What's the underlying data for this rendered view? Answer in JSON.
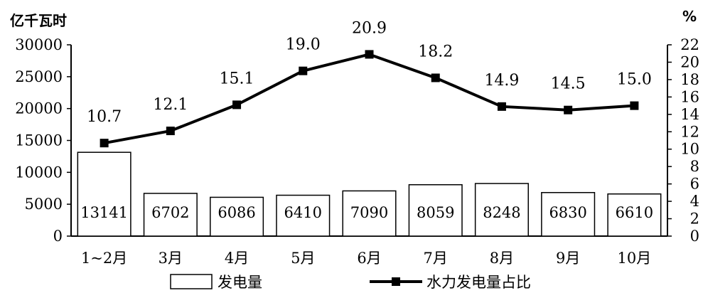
{
  "chart_data": {
    "type": "bar",
    "categories": [
      "1~2月",
      "3月",
      "4月",
      "5月",
      "6月",
      "7月",
      "8月",
      "9月",
      "10月"
    ],
    "left_axis": {
      "unit": "亿千瓦时",
      "range": [
        0,
        30000
      ],
      "ticks": [
        0,
        5000,
        10000,
        15000,
        20000,
        25000,
        30000
      ]
    },
    "right_axis": {
      "unit": "%",
      "range": [
        0,
        22
      ],
      "ticks": [
        0,
        2,
        4,
        6,
        8,
        10,
        12,
        14,
        16,
        18,
        20,
        22
      ]
    },
    "series": [
      {
        "name": "发电量",
        "type": "bar",
        "axis": "left",
        "values": [
          13141,
          6702,
          6086,
          6410,
          7090,
          8059,
          8248,
          6830,
          6610
        ],
        "fill": "#ffffff",
        "stroke": "#000000"
      },
      {
        "name": "水力发电量占比",
        "type": "line",
        "axis": "right",
        "values": [
          10.7,
          12.1,
          15.1,
          19.0,
          20.9,
          18.2,
          14.9,
          14.5,
          15.0
        ],
        "value_labels": [
          "10.7",
          "12.1",
          "15.1",
          "19.0",
          "20.9",
          "18.2",
          "14.9",
          "14.5",
          "15.0"
        ],
        "color": "#000000",
        "marker": "square"
      }
    ],
    "legend": {
      "placement": "bottom",
      "entries": [
        "发电量",
        "水力发电量占比"
      ]
    },
    "grid": false
  }
}
